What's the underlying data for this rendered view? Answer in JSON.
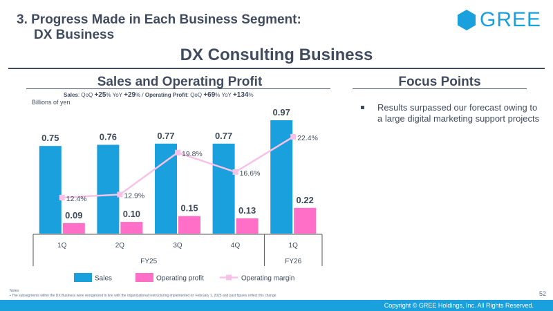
{
  "heading": {
    "line1": "3. Progress Made in Each Business Segment:",
    "line2": "DX Business"
  },
  "logo": {
    "text": "GREE",
    "color": "#1aa0dc"
  },
  "main_title": "DX Consulting Business",
  "left_section": {
    "title": "Sales and Operating Profit",
    "summary": {
      "sales_label": "Sales",
      "sales_qoq_prefix": ": QoQ ",
      "sales_qoq": "+25",
      "pct": "%",
      "yoy_label": " YoY ",
      "sales_yoy": "+29",
      "sep": " / ",
      "op_label": "Operating Profit",
      "op_qoq_prefix": ": QoQ ",
      "op_qoq": "+69",
      "op_yoy": "+134"
    },
    "unit": "Billions of yen"
  },
  "right_section": {
    "title": "Focus Points",
    "points": [
      "Results surpassed our forecast owing to a large digital marketing support projects"
    ]
  },
  "notes": {
    "title": "Notes:",
    "items": [
      "The subsegments within the DX Business were reorganized in line with the organizational restructuring implemented on February 1, 2025 and past figures reflect this change"
    ]
  },
  "page_number": "52",
  "footer": "Copyright © GREE Holdings, Inc. All Rights Reserved.",
  "chart_data": {
    "type": "bar",
    "categories": [
      "1Q",
      "2Q",
      "3Q",
      "4Q",
      "1Q"
    ],
    "groups": [
      {
        "label": "FY25",
        "count": 4
      },
      {
        "label": "FY26",
        "count": 1
      }
    ],
    "series": [
      {
        "name": "Sales",
        "type": "bar",
        "values": [
          0.75,
          0.76,
          0.77,
          0.77,
          0.97
        ],
        "labels": [
          "0.75",
          "0.76",
          "0.77",
          "0.77",
          "0.97"
        ],
        "color": "#1aa0dc"
      },
      {
        "name": "Operating profit",
        "type": "bar",
        "values": [
          0.09,
          0.1,
          0.15,
          0.13,
          0.22
        ],
        "labels": [
          "0.09",
          "0.10",
          "0.15",
          "0.13",
          "0.22"
        ],
        "color": "#ff6ec7"
      },
      {
        "name": "Operating margin",
        "type": "line",
        "values": [
          12.4,
          12.9,
          19.8,
          16.6,
          22.4
        ],
        "labels": [
          "12.4%",
          "12.9%",
          "19.8%",
          "16.6%",
          "22.4%"
        ],
        "color": "#f8c2e8"
      }
    ],
    "ylabel": "Billions of yen",
    "ylim": [
      0,
      0.97
    ],
    "legend": "bottom"
  }
}
